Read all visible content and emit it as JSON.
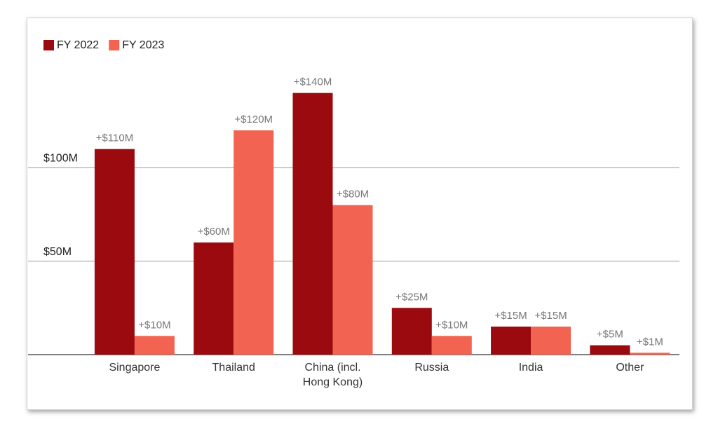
{
  "chart_data": {
    "type": "bar",
    "categories": [
      "Singapore",
      "Thailand",
      "China (incl. Hong Kong)",
      "Russia",
      "India",
      "Other"
    ],
    "series": [
      {
        "name": "FY 2022",
        "color": "#9b0a0e",
        "values": [
          110,
          60,
          140,
          25,
          15,
          5
        ],
        "value_labels": [
          "+$110M",
          "+$60M",
          "+$140M",
          "+$25M",
          "+$15M",
          "+$5M"
        ]
      },
      {
        "name": "FY 2023",
        "color": "#f26451",
        "values": [
          10,
          120,
          80,
          10,
          15,
          1
        ],
        "value_labels": [
          "+$10M",
          "+$120M",
          "+$80M",
          "+$10M",
          "+$15M",
          "+$1M"
        ]
      }
    ],
    "ylim": [
      0,
      150
    ],
    "yticks": [
      {
        "value": 50,
        "label": "$50M"
      },
      {
        "value": 100,
        "label": "$100M"
      }
    ],
    "grid": true,
    "legend": "top-left"
  }
}
